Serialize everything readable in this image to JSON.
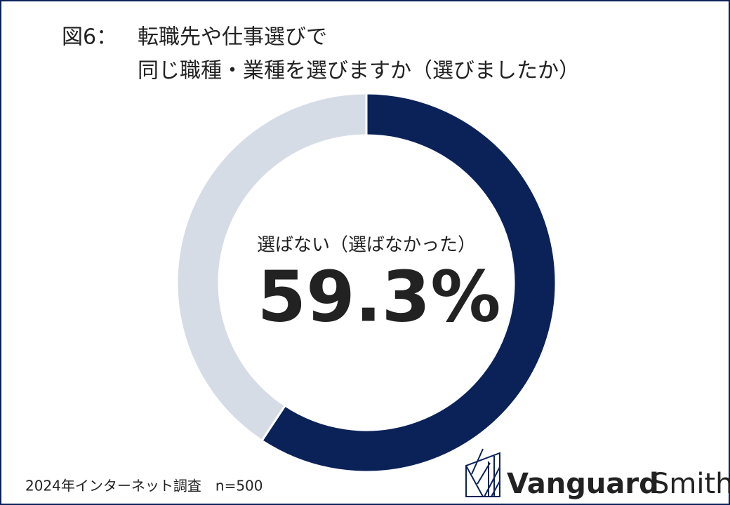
{
  "chart_data": {
    "type": "donut",
    "figure_label": "図6：",
    "title_lines": [
      "転職先や仕事選びで",
      "同じ職種・業種を選びますか（選びましたか）"
    ],
    "categories": [
      "選ばない（選ばなかった）",
      null
    ],
    "values": [
      59.3,
      40.7
    ],
    "value_labels": [
      "59.3%",
      null
    ],
    "colors": [
      "#0b2259",
      "#d6dce5"
    ],
    "source": "2024年インターネット調査　n=500",
    "logo": {
      "bold": "Vanguard",
      "light": "Smith"
    }
  }
}
